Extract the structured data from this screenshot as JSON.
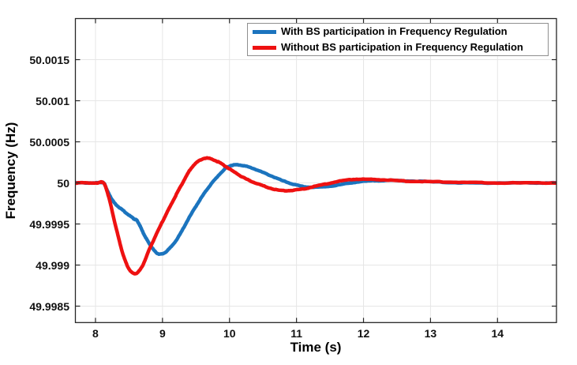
{
  "chart_data": {
    "type": "line",
    "title": "",
    "xlabel": "Time (s)",
    "ylabel": "Frequency (Hz)",
    "xlim": [
      7.7,
      14.88
    ],
    "ylim": [
      49.9983,
      50.002
    ],
    "x_ticks": [
      8,
      9,
      10,
      11,
      12,
      13,
      14
    ],
    "x_tick_labels": [
      "8",
      "9",
      "10",
      "11",
      "12",
      "13",
      "14"
    ],
    "y_ticks": [
      49.9985,
      49.999,
      49.9995,
      50,
      50.0005,
      50.001,
      50.0015
    ],
    "y_tick_labels": [
      "49.9985",
      "49.999",
      "49.9995",
      "50",
      "50.0005",
      "50.001",
      "50.0015"
    ],
    "grid": true,
    "grid_color": "#e6e6e6",
    "axis_color": "#262626",
    "legend_position": "top-right",
    "series": [
      {
        "name": "With BS participation in Frequency Regulation",
        "color": "#1b74be",
        "line_width": 4.5,
        "points": [
          [
            7.7,
            50.0
          ],
          [
            8.02,
            50.0
          ],
          [
            8.12,
            50.0
          ],
          [
            8.18,
            49.9999
          ],
          [
            8.28,
            49.99976
          ],
          [
            8.42,
            49.99966
          ],
          [
            8.56,
            49.99957
          ],
          [
            8.63,
            49.99953
          ],
          [
            8.72,
            49.99938
          ],
          [
            8.82,
            49.99924
          ],
          [
            8.93,
            49.99914
          ],
          [
            9.05,
            49.99916
          ],
          [
            9.22,
            49.99932
          ],
          [
            9.4,
            49.99958
          ],
          [
            9.58,
            49.99982
          ],
          [
            9.75,
            50.00001
          ],
          [
            9.95,
            50.00018
          ],
          [
            10.1,
            50.00022
          ],
          [
            10.3,
            50.00019
          ],
          [
            10.55,
            50.00011
          ],
          [
            10.85,
            50.00001
          ],
          [
            11.15,
            49.99995
          ],
          [
            11.5,
            49.99996
          ],
          [
            11.9,
            50.00001
          ],
          [
            12.3,
            50.00003
          ],
          [
            12.8,
            50.00002
          ],
          [
            13.5,
            50.0
          ],
          [
            14.2,
            50.0
          ],
          [
            14.88,
            50.0
          ]
        ]
      },
      {
        "name": "Without BS participation in Frequency Regulation",
        "color": "#ee1111",
        "line_width": 4.5,
        "points": [
          [
            7.7,
            50.0
          ],
          [
            8.02,
            50.0
          ],
          [
            8.12,
            50.0
          ],
          [
            8.2,
            49.99982
          ],
          [
            8.32,
            49.99941
          ],
          [
            8.44,
            49.99906
          ],
          [
            8.56,
            49.9989
          ],
          [
            8.68,
            49.99896
          ],
          [
            8.82,
            49.99922
          ],
          [
            9.0,
            49.99953
          ],
          [
            9.15,
            49.99977
          ],
          [
            9.3,
            50.0
          ],
          [
            9.45,
            50.0002
          ],
          [
            9.63,
            50.0003
          ],
          [
            9.82,
            50.00026
          ],
          [
            10.0,
            50.00017
          ],
          [
            10.22,
            50.00006
          ],
          [
            10.45,
            49.99998
          ],
          [
            10.75,
            49.99991
          ],
          [
            11.05,
            49.99992
          ],
          [
            11.4,
            49.99998
          ],
          [
            11.8,
            50.00004
          ],
          [
            12.2,
            50.00004
          ],
          [
            12.7,
            50.00002
          ],
          [
            13.3,
            50.00001
          ],
          [
            14.0,
            50.0
          ],
          [
            14.88,
            50.0
          ]
        ]
      }
    ]
  },
  "legend": {
    "items": [
      {
        "label": "With BS participation in Frequency Regulation",
        "color": "#1b74be"
      },
      {
        "label": "Without BS participation in Frequency Regulation",
        "color": "#ee1111"
      }
    ]
  },
  "colors": {
    "background": "#ffffff",
    "with_bs_line": "#1b74be",
    "without_bs_line": "#ee1111",
    "grid": "#e6e6e6",
    "axis_box": "#262626",
    "legend_border": "#8f8f8f"
  }
}
